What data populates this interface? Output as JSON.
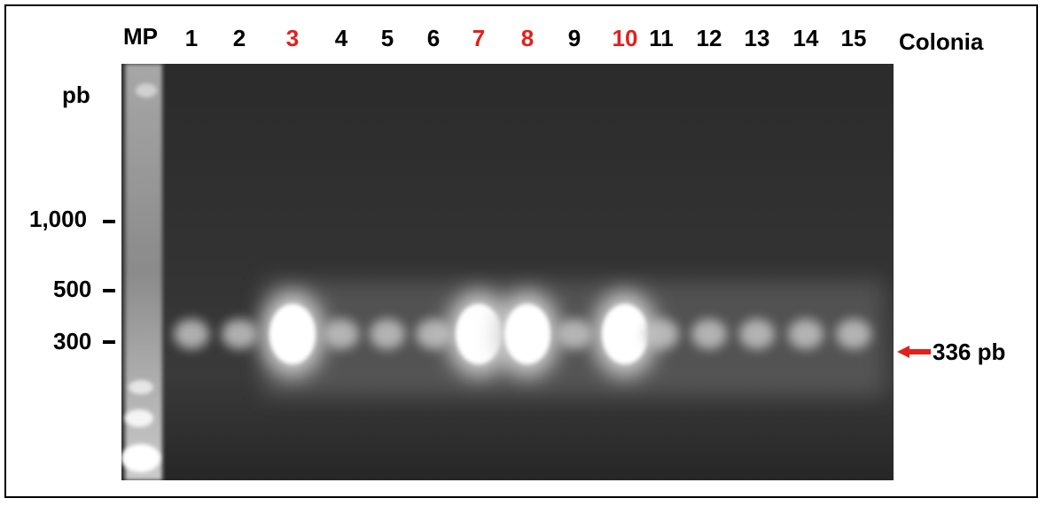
{
  "header": {
    "marker_label": "MP",
    "lanes": [
      {
        "label": "1",
        "highlight": false
      },
      {
        "label": "2",
        "highlight": false
      },
      {
        "label": "3",
        "highlight": true
      },
      {
        "label": "4",
        "highlight": false
      },
      {
        "label": "5",
        "highlight": false
      },
      {
        "label": "6",
        "highlight": false
      },
      {
        "label": "7",
        "highlight": true
      },
      {
        "label": "8",
        "highlight": true
      },
      {
        "label": "9",
        "highlight": false
      },
      {
        "label": "10",
        "highlight": true
      },
      {
        "label": "11",
        "highlight": false
      },
      {
        "label": "12",
        "highlight": false
      },
      {
        "label": "13",
        "highlight": false
      },
      {
        "label": "14",
        "highlight": false
      },
      {
        "label": "15",
        "highlight": false
      }
    ],
    "colonia_label": "Colonia"
  },
  "size_axis": {
    "unit_label": "pb",
    "markers": [
      "1,000",
      "500",
      "300"
    ]
  },
  "band_annotation": "336 pb",
  "colors": {
    "highlight": "#e0211d",
    "text": "#000000",
    "gel_background": "#2f2f2f",
    "arrow": "#e0211d"
  }
}
